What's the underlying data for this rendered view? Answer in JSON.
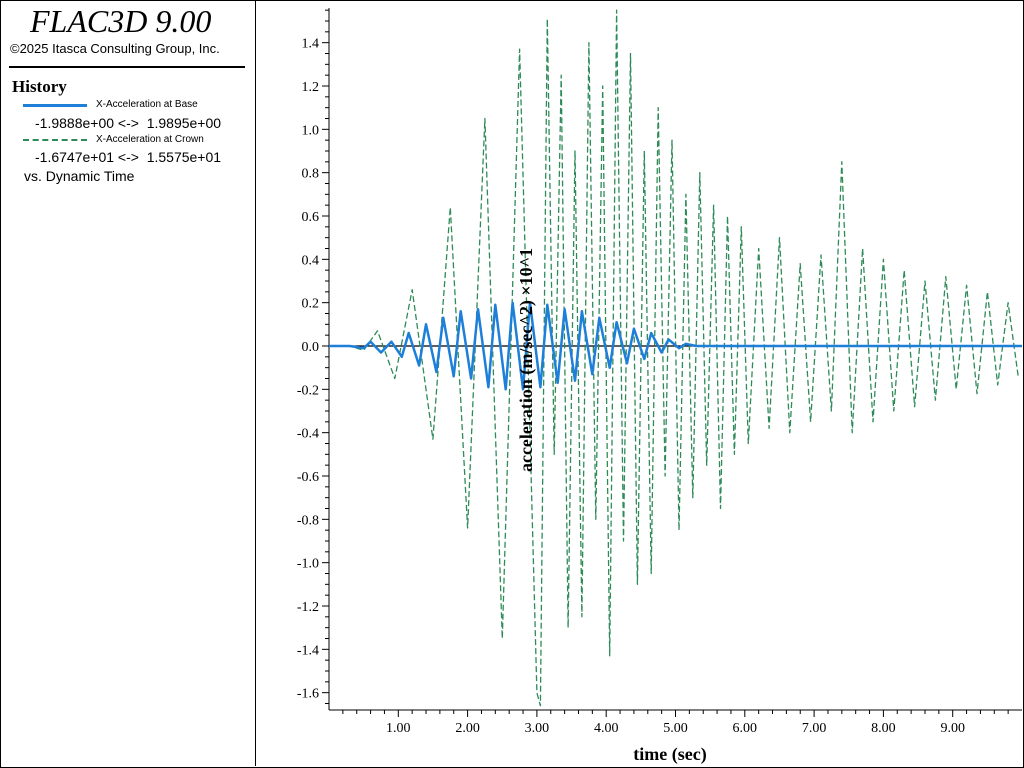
{
  "app": {
    "title": "FLAC3D 9.00",
    "copyright": "©2025 Itasca Consulting Group, Inc."
  },
  "legend": {
    "heading": "History",
    "items": [
      {
        "name": "X-Acceleration at Base",
        "range": "-1.9888e+00 <->  1.9895e+00",
        "color": "#1e7fd9",
        "style": "solid"
      },
      {
        "name": "X-Acceleration at Crown",
        "range": "-1.6747e+01 <->  1.5575e+01",
        "color": "#2e8b57",
        "style": "dashed"
      }
    ],
    "vs_label": "vs. Dynamic Time"
  },
  "chart_data": {
    "type": "line",
    "xlabel": "time (sec)",
    "ylabel": "acceleration (m/sec^2) ×10^1",
    "xlim": [
      0,
      10
    ],
    "ylim": [
      -1.68,
      1.56
    ],
    "x_ticks": [
      "1.00",
      "2.00",
      "3.00",
      "4.00",
      "5.00",
      "6.00",
      "7.00",
      "8.00",
      "9.00"
    ],
    "x_tick_values": [
      1,
      2,
      3,
      4,
      5,
      6,
      7,
      8,
      9
    ],
    "y_ticks": [
      "1.4",
      "1.2",
      "1.0",
      "0.8",
      "0.6",
      "0.4",
      "0.2",
      "0.0",
      "-0.2",
      "-0.4",
      "-0.6",
      "-0.8",
      "-1.0",
      "-1.2",
      "-1.4",
      "-1.6"
    ],
    "y_tick_values": [
      1.4,
      1.2,
      1.0,
      0.8,
      0.6,
      0.4,
      0.2,
      0.0,
      -0.2,
      -0.4,
      -0.6,
      -0.8,
      -1.0,
      -1.2,
      -1.4,
      -1.6
    ],
    "zero_line": true,
    "grid": false,
    "series": [
      {
        "name": "X-Acceleration at Base",
        "color": "#1e7fd9",
        "style": "solid",
        "x": [
          0,
          0.3,
          0.5,
          0.6,
          0.75,
          0.9,
          1.05,
          1.15,
          1.3,
          1.4,
          1.55,
          1.65,
          1.8,
          1.9,
          2.05,
          2.15,
          2.3,
          2.4,
          2.55,
          2.65,
          2.8,
          2.9,
          3.05,
          3.15,
          3.3,
          3.4,
          3.55,
          3.65,
          3.8,
          3.9,
          4.05,
          4.15,
          4.3,
          4.4,
          4.55,
          4.65,
          4.8,
          4.9,
          5.05,
          5.15,
          5.3,
          5.4,
          5.55,
          5.65,
          5.8,
          6.0,
          7.0,
          8.0,
          9.0,
          10.0
        ],
        "y": [
          0,
          0,
          -0.01,
          0.02,
          -0.03,
          0.02,
          -0.05,
          0.06,
          -0.09,
          0.1,
          -0.12,
          0.13,
          -0.14,
          0.16,
          -0.15,
          0.17,
          -0.19,
          0.19,
          -0.2,
          0.2,
          -0.2,
          0.2,
          -0.19,
          0.19,
          -0.17,
          0.17,
          -0.16,
          0.16,
          -0.13,
          0.13,
          -0.1,
          0.11,
          -0.08,
          0.08,
          -0.06,
          0.06,
          -0.03,
          0.03,
          -0.01,
          0.01,
          0,
          0,
          0,
          0,
          0,
          0,
          0,
          0,
          0,
          0
        ]
      },
      {
        "name": "X-Acceleration at Crown",
        "color": "#2e8b57",
        "style": "dashed",
        "x": [
          0,
          0.3,
          0.5,
          0.7,
          0.95,
          1.2,
          1.5,
          1.75,
          2.0,
          2.25,
          2.5,
          2.75,
          2.85,
          3.0,
          3.05,
          3.15,
          3.25,
          3.35,
          3.45,
          3.55,
          3.65,
          3.75,
          3.85,
          3.95,
          4.05,
          4.15,
          4.25,
          4.35,
          4.45,
          4.55,
          4.65,
          4.75,
          4.85,
          4.95,
          5.05,
          5.15,
          5.25,
          5.35,
          5.45,
          5.55,
          5.65,
          5.75,
          5.85,
          5.95,
          6.05,
          6.2,
          6.35,
          6.5,
          6.65,
          6.8,
          6.95,
          7.1,
          7.25,
          7.4,
          7.55,
          7.7,
          7.85,
          8.0,
          8.15,
          8.3,
          8.45,
          8.6,
          8.75,
          8.9,
          9.05,
          9.2,
          9.35,
          9.5,
          9.65,
          9.8,
          9.95
        ],
        "y": [
          0,
          0,
          -0.02,
          0.07,
          -0.15,
          0.26,
          -0.43,
          0.64,
          -0.84,
          1.05,
          -1.35,
          1.37,
          0.2,
          -1.6,
          -1.66,
          1.51,
          -0.5,
          1.25,
          -1.3,
          0.9,
          -1.25,
          1.4,
          -0.8,
          1.2,
          -1.43,
          1.55,
          -0.9,
          1.35,
          -1.1,
          0.9,
          -1.05,
          1.1,
          -0.6,
          0.95,
          -0.85,
          0.7,
          -0.7,
          0.8,
          -0.55,
          0.65,
          -0.75,
          0.6,
          -0.5,
          0.55,
          -0.45,
          0.45,
          -0.38,
          0.5,
          -0.4,
          0.38,
          -0.35,
          0.42,
          -0.3,
          0.85,
          -0.4,
          0.45,
          -0.35,
          0.4,
          -0.3,
          0.35,
          -0.28,
          0.3,
          -0.25,
          0.32,
          -0.2,
          0.28,
          -0.22,
          0.25,
          -0.18,
          0.2,
          -0.15
        ]
      }
    ]
  }
}
